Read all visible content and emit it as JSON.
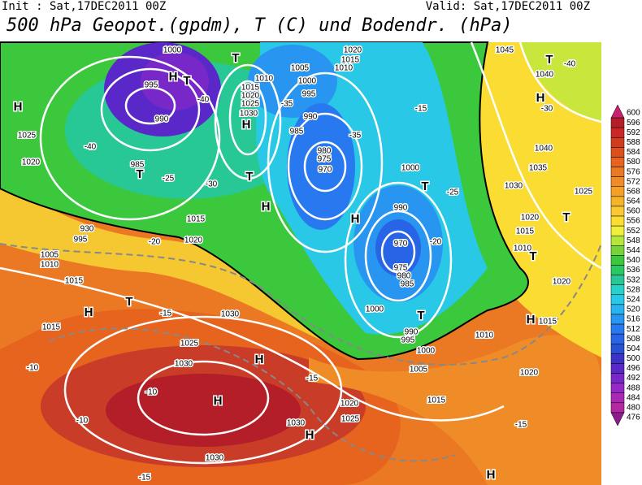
{
  "header": {
    "init": "Init : Sat,17DEC2011 00Z",
    "valid": "Valid: Sat,17DEC2011 00Z",
    "title": "500 hPa Geopot.(gpdm), T (C) und Bodendr. (hPa)"
  },
  "map": {
    "labels": [
      "1000",
      "995",
      "990",
      "H",
      "T",
      "T",
      "1010",
      "1015",
      "1020",
      "1025",
      "1030",
      "H",
      "1005",
      "1000",
      "995",
      "1015",
      "1020",
      "1010",
      "990",
      "985",
      "980",
      "975",
      "970",
      "T",
      "H",
      "1000",
      "990",
      "970",
      "975",
      "980",
      "985",
      "T",
      "H",
      "H",
      "1025",
      "1020",
      "985",
      "T",
      "930",
      "995",
      "1005",
      "1010",
      "1015",
      "1015",
      "1020",
      "H",
      "T",
      "1015",
      "1030",
      "1025",
      "1030",
      "H",
      "H",
      "1030",
      "1020",
      "1025",
      "1015",
      "H",
      "1030",
      "1000",
      "990",
      "995",
      "1000",
      "1005",
      "T",
      "1010",
      "H",
      "1015",
      "1020",
      "1020",
      "H",
      "1045",
      "T",
      "1040",
      "H",
      "1040",
      "1035",
      "1030",
      "1025",
      "1020",
      "T",
      "1015",
      "1010",
      "T",
      "-40",
      "-35",
      "-30",
      "-25",
      "-20",
      "-15",
      "-10",
      "-10",
      "-10",
      "-15",
      "-15",
      "-15",
      "-20",
      "-25",
      "-30",
      "-40",
      "-15",
      "-35",
      "-40"
    ]
  },
  "colorbar": {
    "ticks": [
      600,
      596,
      592,
      588,
      584,
      580,
      576,
      572,
      568,
      564,
      560,
      556,
      552,
      548,
      544,
      540,
      536,
      532,
      528,
      524,
      520,
      516,
      512,
      508,
      504,
      500,
      496,
      492,
      488,
      484,
      480,
      476
    ],
    "colors": [
      "#c8206e",
      "#b41e28",
      "#c82828",
      "#d23c1e",
      "#dc501e",
      "#e6641e",
      "#eb7823",
      "#f08c28",
      "#f5a028",
      "#f5b428",
      "#fac832",
      "#fadc32",
      "#f0f03c",
      "#b4e63c",
      "#78d23c",
      "#3cc83c",
      "#28c864",
      "#28c896",
      "#28d2c8",
      "#28c8e6",
      "#28b4f0",
      "#2896f0",
      "#2878f0",
      "#2864e6",
      "#2850d2",
      "#3c32c8",
      "#5a28c8",
      "#7828c8",
      "#9628c8",
      "#aa28b4",
      "#b428a0",
      "#8c1e8c"
    ]
  }
}
